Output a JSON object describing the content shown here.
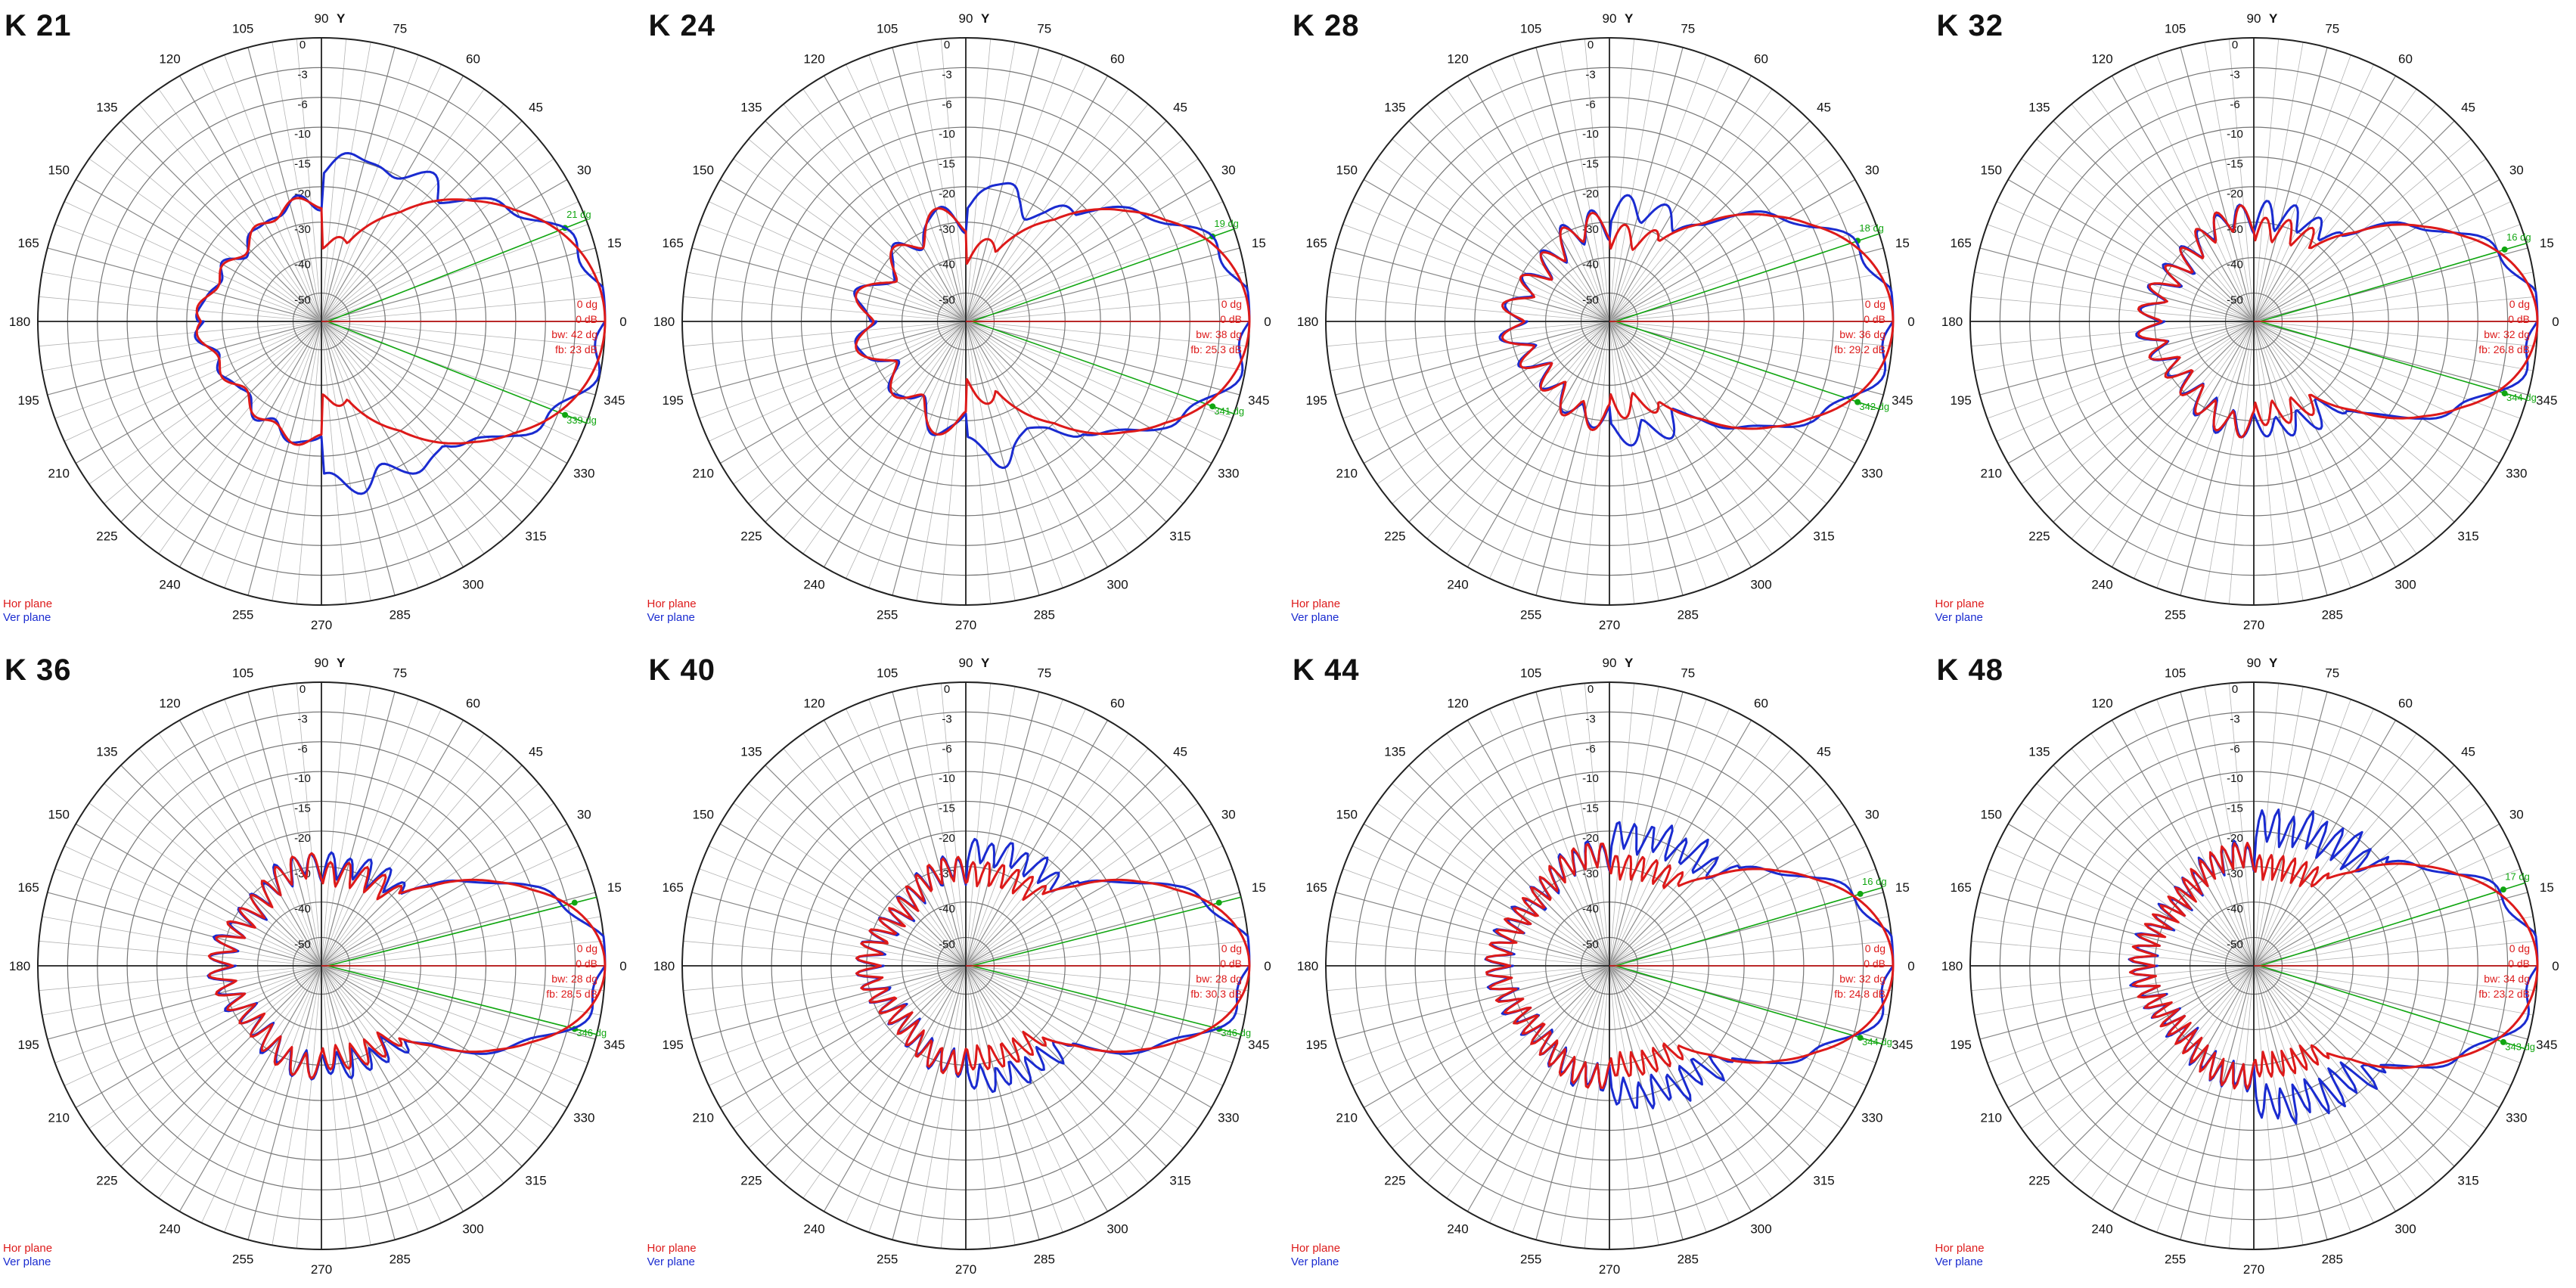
{
  "colors": {
    "hor": "#dd1a1a",
    "ver": "#1a2bd0",
    "marker": "#11a611",
    "grid": "#b4b4b4",
    "axis": "#222222"
  },
  "legend": {
    "hor_label": "Hor plane",
    "ver_label": "Ver plane"
  },
  "axis_title": "Y",
  "chart_data": [
    {
      "type": "polar",
      "title": "K 21",
      "angle_ticks": [
        "0",
        "15",
        "30",
        "45",
        "60",
        "75",
        "90",
        "105",
        "120",
        "135",
        "150",
        "165",
        "180",
        "195",
        "210",
        "225",
        "240",
        "255",
        "270",
        "285",
        "300",
        "315",
        "330",
        "345"
      ],
      "radial_ticks": [
        "0",
        "-3",
        "-6",
        "-10",
        "-15",
        "-20",
        "-30",
        "-40",
        "-50"
      ],
      "radial_levels_db": [
        0,
        -3,
        -6,
        -10,
        -15,
        -20,
        -30,
        -40,
        -50
      ],
      "series": [
        {
          "name": "Hor plane",
          "beamwidth_dg": 42,
          "sidelobe": -36,
          "hor_lobes": 0
        },
        {
          "name": "Ver plane",
          "beamwidth_dg": 42,
          "sidelobe": -16,
          "ver_lobes": 0
        }
      ],
      "annotations": {
        "upper_marker": "21 dg",
        "lower_marker": "339 dg",
        "peak_dg": "0 dg",
        "peak_db": "0 dB",
        "bw": "bw: 42 dg",
        "fb": "fb: 23 dB"
      },
      "back_db": -26,
      "lobe_count": 0
    },
    {
      "type": "polar",
      "title": "K 24",
      "angle_ticks": [
        "0",
        "15",
        "30",
        "45",
        "60",
        "75",
        "90",
        "105",
        "120",
        "135",
        "150",
        "165",
        "180",
        "195",
        "210",
        "225",
        "240",
        "255",
        "270",
        "285",
        "300",
        "315",
        "330",
        "345"
      ],
      "radial_ticks": [
        "0",
        "-3",
        "-6",
        "-10",
        "-15",
        "-20",
        "-30",
        "-40",
        "-50"
      ],
      "radial_levels_db": [
        0,
        -3,
        -6,
        -10,
        -15,
        -20,
        -30,
        -40,
        -50
      ],
      "series": [
        {
          "name": "Hor plane",
          "beamwidth_dg": 38,
          "sidelobe": -36
        },
        {
          "name": "Ver plane",
          "beamwidth_dg": 38,
          "sidelobe": -20
        }
      ],
      "annotations": {
        "upper_marker": "19 dg",
        "lower_marker": "341 dg",
        "peak_dg": "0 dg",
        "peak_db": "0 dB",
        "bw": "bw: 38 dg",
        "fb": "fb: 25.3 dB"
      },
      "back_db": -28,
      "lobe_count": 3
    },
    {
      "type": "polar",
      "title": "K 28",
      "angle_ticks": [
        "0",
        "15",
        "30",
        "45",
        "60",
        "75",
        "90",
        "105",
        "120",
        "135",
        "150",
        "165",
        "180",
        "195",
        "210",
        "225",
        "240",
        "255",
        "270",
        "285",
        "300",
        "315",
        "330",
        "345"
      ],
      "radial_ticks": [
        "0",
        "-3",
        "-6",
        "-10",
        "-15",
        "-20",
        "-30",
        "-40",
        "-50"
      ],
      "radial_levels_db": [
        0,
        -3,
        -6,
        -10,
        -15,
        -20,
        -30,
        -40,
        -50
      ],
      "series": [
        {
          "name": "Hor plane",
          "beamwidth_dg": 36,
          "sidelobe": -32
        },
        {
          "name": "Ver plane",
          "beamwidth_dg": 36,
          "sidelobe": -24
        }
      ],
      "annotations": {
        "upper_marker": "18 dg",
        "lower_marker": "342 dg",
        "peak_dg": "0 dg",
        "peak_db": "0 dB",
        "bw": "bw: 36 dg",
        "fb": "fb: 29.2 dB"
      },
      "back_db": -30,
      "lobe_count": 5
    },
    {
      "type": "polar",
      "title": "K 32",
      "angle_ticks": [
        "0",
        "15",
        "30",
        "45",
        "60",
        "75",
        "90",
        "105",
        "120",
        "135",
        "150",
        "165",
        "180",
        "195",
        "210",
        "225",
        "240",
        "255",
        "270",
        "285",
        "300",
        "315",
        "330",
        "345"
      ],
      "radial_ticks": [
        "0",
        "-3",
        "-6",
        "-10",
        "-15",
        "-20",
        "-30",
        "-40",
        "-50"
      ],
      "radial_levels_db": [
        0,
        -3,
        -6,
        -10,
        -15,
        -20,
        -30,
        -40,
        -50
      ],
      "series": [
        {
          "name": "Hor plane",
          "beamwidth_dg": 32,
          "sidelobe": -30
        },
        {
          "name": "Ver plane",
          "beamwidth_dg": 32,
          "sidelobe": -26
        }
      ],
      "annotations": {
        "upper_marker": "16 dg",
        "lower_marker": "344 dg",
        "peak_dg": "0 dg",
        "peak_db": "0 dB",
        "bw": "bw: 32 dg",
        "fb": "fb: 26.8 dB"
      },
      "back_db": -28,
      "lobe_count": 7
    },
    {
      "type": "polar",
      "title": "K 36",
      "angle_ticks": [
        "0",
        "15",
        "30",
        "45",
        "60",
        "75",
        "90",
        "105",
        "120",
        "135",
        "150",
        "165",
        "180",
        "195",
        "210",
        "225",
        "240",
        "255",
        "270",
        "285",
        "300",
        "315",
        "330",
        "345"
      ],
      "radial_ticks": [
        "0",
        "-3",
        "-6",
        "-10",
        "-15",
        "-20",
        "-30",
        "-40",
        "-50"
      ],
      "radial_levels_db": [
        0,
        -3,
        -6,
        -10,
        -15,
        -20,
        -30,
        -40,
        -50
      ],
      "series": [
        {
          "name": "Hor plane",
          "beamwidth_dg": 28,
          "sidelobe": -30
        },
        {
          "name": "Ver plane",
          "beamwidth_dg": 28,
          "sidelobe": -28
        }
      ],
      "annotations": {
        "upper_marker": "",
        "lower_marker": "346 dg",
        "peak_dg": "0 dg",
        "peak_db": "0 dB",
        "bw": "bw: 28 dg",
        "fb": "fb: 28.5 dB"
      },
      "back_db": -29,
      "lobe_count": 9
    },
    {
      "type": "polar",
      "title": "K 40",
      "angle_ticks": [
        "0",
        "15",
        "30",
        "45",
        "60",
        "75",
        "90",
        "105",
        "120",
        "135",
        "150",
        "165",
        "180",
        "195",
        "210",
        "225",
        "240",
        "255",
        "270",
        "285",
        "300",
        "315",
        "330",
        "345"
      ],
      "radial_ticks": [
        "0",
        "-3",
        "-6",
        "-10",
        "-15",
        "-20",
        "-30",
        "-40",
        "-50"
      ],
      "radial_levels_db": [
        0,
        -3,
        -6,
        -10,
        -15,
        -20,
        -30,
        -40,
        -50
      ],
      "series": [
        {
          "name": "Hor plane",
          "beamwidth_dg": 28,
          "sidelobe": -30
        },
        {
          "name": "Ver plane",
          "beamwidth_dg": 28,
          "sidelobe": -24
        }
      ],
      "annotations": {
        "upper_marker": "",
        "lower_marker": "346 dg",
        "peak_dg": "0 dg",
        "peak_db": "0 dB",
        "bw": "bw: 28 dg",
        "fb": "fb: 30.3 dB"
      },
      "back_db": -30,
      "lobe_count": 11
    },
    {
      "type": "polar",
      "title": "K 44",
      "angle_ticks": [
        "0",
        "15",
        "30",
        "45",
        "60",
        "75",
        "90",
        "105",
        "120",
        "135",
        "150",
        "165",
        "180",
        "195",
        "210",
        "225",
        "240",
        "255",
        "270",
        "285",
        "300",
        "315",
        "330",
        "345"
      ],
      "radial_ticks": [
        "0",
        "-3",
        "-6",
        "-10",
        "-15",
        "-20",
        "-30",
        "-40",
        "-50"
      ],
      "radial_levels_db": [
        0,
        -3,
        -6,
        -10,
        -15,
        -20,
        -30,
        -40,
        -50
      ],
      "series": [
        {
          "name": "Hor plane",
          "beamwidth_dg": 32,
          "sidelobe": -28
        },
        {
          "name": "Ver plane",
          "beamwidth_dg": 32,
          "sidelobe": -20
        }
      ],
      "annotations": {
        "upper_marker": "16 dg",
        "lower_marker": "344 dg",
        "peak_dg": "0 dg",
        "peak_db": "0 dB",
        "bw": "bw: 32 dg",
        "fb": "fb: 24.8 dB"
      },
      "back_db": -26,
      "lobe_count": 13
    },
    {
      "type": "polar",
      "title": "K 48",
      "angle_ticks": [
        "0",
        "15",
        "30",
        "45",
        "60",
        "75",
        "90",
        "105",
        "120",
        "135",
        "150",
        "165",
        "180",
        "195",
        "210",
        "225",
        "240",
        "255",
        "270",
        "285",
        "300",
        "315",
        "330",
        "345"
      ],
      "radial_ticks": [
        "0",
        "-3",
        "-6",
        "-10",
        "-15",
        "-20",
        "-30",
        "-40",
        "-50"
      ],
      "radial_levels_db": [
        0,
        -3,
        -6,
        -10,
        -15,
        -20,
        -30,
        -40,
        -50
      ],
      "series": [
        {
          "name": "Hor plane",
          "beamwidth_dg": 34,
          "sidelobe": -28
        },
        {
          "name": "Ver plane",
          "beamwidth_dg": 34,
          "sidelobe": -18
        }
      ],
      "annotations": {
        "upper_marker": "17 dg",
        "lower_marker": "343 dg",
        "peak_dg": "0 dg",
        "peak_db": "0 dB",
        "bw": "bw: 34 dg",
        "fb": "fb: 23.2 dB"
      },
      "back_db": -26,
      "lobe_count": 15
    }
  ]
}
